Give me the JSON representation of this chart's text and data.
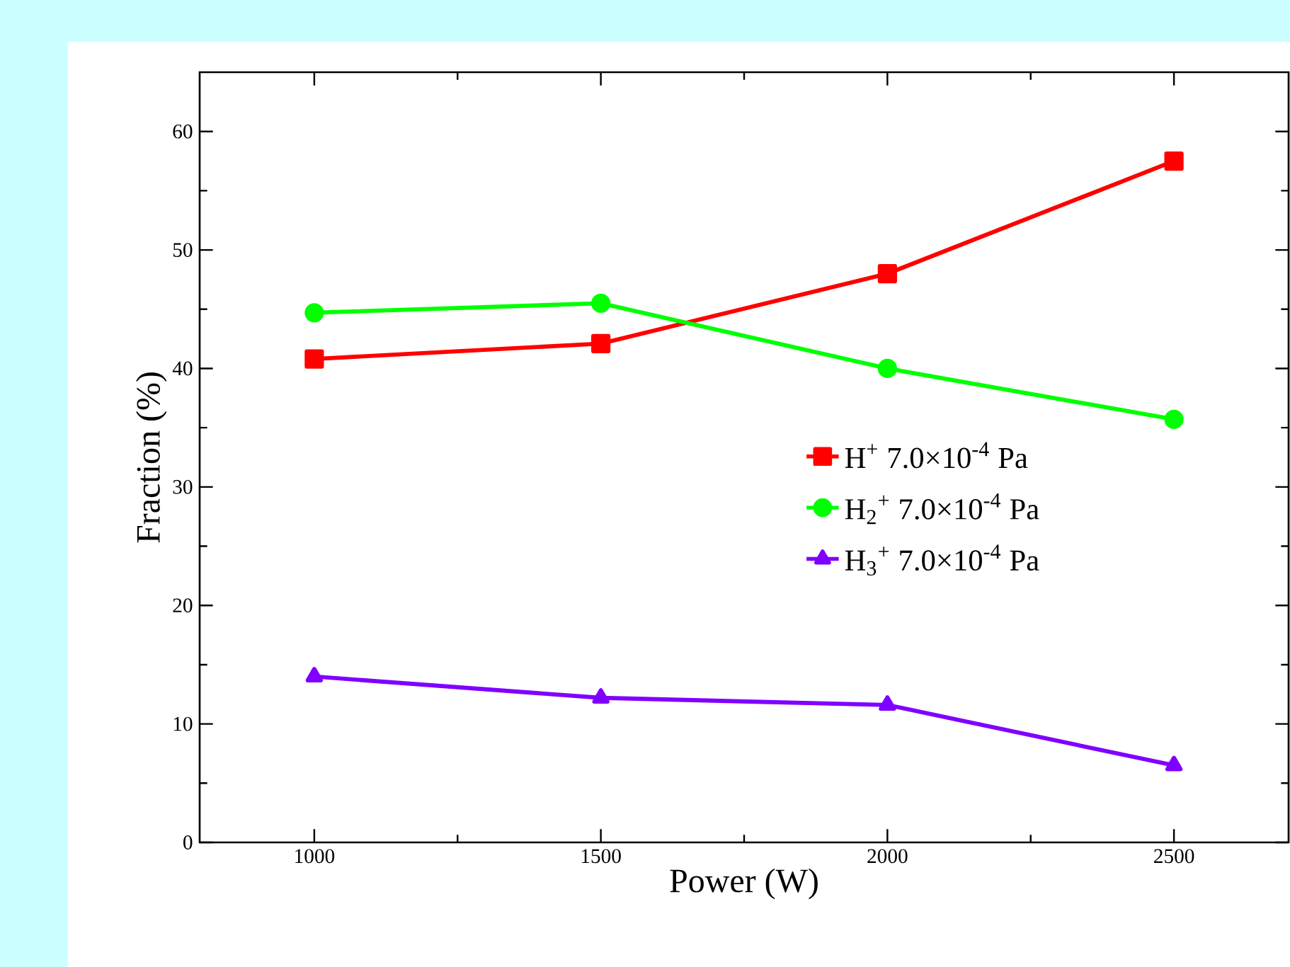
{
  "chart_data": {
    "type": "line",
    "xlabel": "Power (W)",
    "ylabel": "Fraction (%)",
    "x": [
      1000,
      1500,
      2000,
      2500
    ],
    "series": [
      {
        "name": "H$^{+}$  7.0×10$^{-4}$ Pa",
        "color": "#ff0000",
        "marker": "square",
        "values": [
          40.8,
          42.1,
          48.0,
          57.5
        ]
      },
      {
        "name": "H$_{2}$$^{+}$  7.0×10$^{-4}$ Pa",
        "color": "#00ff00",
        "marker": "circle",
        "values": [
          44.7,
          45.5,
          40.0,
          35.7
        ]
      },
      {
        "name": "H$_{3}$$^{+}$  7.0×10$^{-4}$ Pa",
        "color": "#8000ff",
        "marker": "triangle",
        "values": [
          14.0,
          12.2,
          11.6,
          6.5
        ]
      }
    ],
    "xlim": [
      800,
      2700
    ],
    "xticks": [
      1000,
      1500,
      2000,
      2500
    ],
    "ylim": [
      0,
      65
    ],
    "yticks": [
      0,
      10,
      20,
      30,
      40,
      50,
      60
    ],
    "grid": false,
    "legend": "right",
    "line_style": "solid"
  }
}
